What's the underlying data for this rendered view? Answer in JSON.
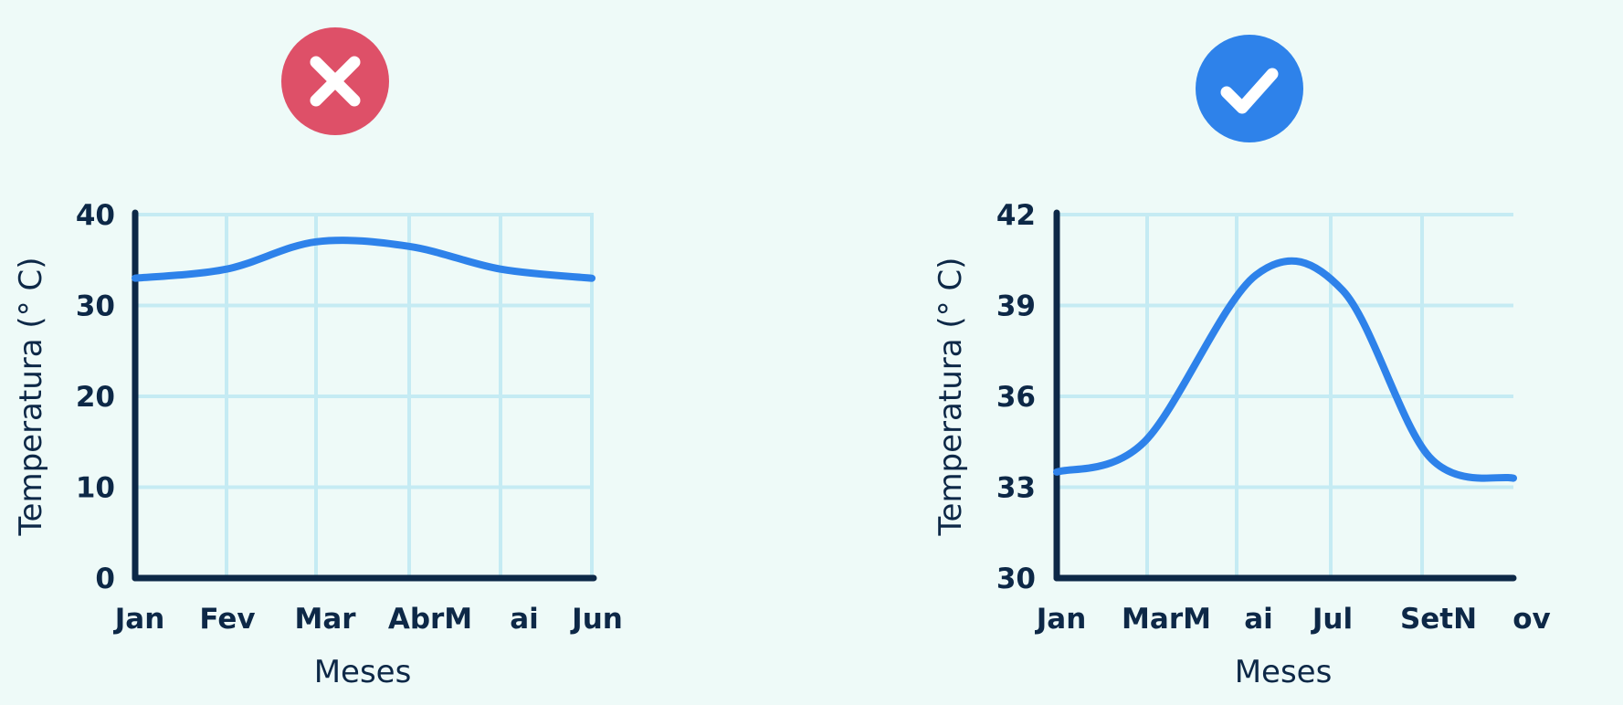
{
  "colors": {
    "background": "#eefaf8",
    "line": "#2e82ea",
    "grid": "#c5ebf3",
    "axis": "#0d2847",
    "text": "#0d2847",
    "bad_badge": "#de5068",
    "good_badge": "#2e82ea",
    "badge_glyph": "#ffffff"
  },
  "badges": [
    {
      "icon": "close-icon",
      "meaning": "incorrect"
    },
    {
      "icon": "check-icon",
      "meaning": "correct"
    }
  ],
  "chart_data": [
    {
      "type": "line",
      "title": "",
      "xlabel": "Meses",
      "ylabel": "Temperatura (° C)",
      "x_tick_labels": [
        "Jan",
        "Fev",
        "Mar",
        "AbrM",
        "ai",
        "Jun"
      ],
      "y_ticks": [
        0,
        10,
        20,
        30,
        40
      ],
      "ylim": [
        0,
        40
      ],
      "grid": true,
      "series": [
        {
          "x": [
            "Jan",
            "Fev",
            "Mar",
            "Abr",
            "Mai",
            "Jun"
          ],
          "values": [
            33,
            34,
            37,
            36.5,
            34,
            33
          ]
        }
      ]
    },
    {
      "type": "line",
      "title": "",
      "xlabel": "Meses",
      "ylabel": "Temperatura (° C)",
      "x_tick_labels": [
        "Jan",
        "MarM",
        "ai",
        "Jul",
        "SetN",
        "ov"
      ],
      "y_ticks": [
        30,
        33,
        36,
        39,
        42
      ],
      "ylim": [
        30,
        42
      ],
      "grid": true,
      "series": [
        {
          "x": [
            "Jan",
            "Mar",
            "Mai",
            "Jul",
            "Set",
            "Nov"
          ],
          "values": [
            33.5,
            34.5,
            40,
            39.5,
            34,
            33.3
          ]
        }
      ]
    }
  ]
}
